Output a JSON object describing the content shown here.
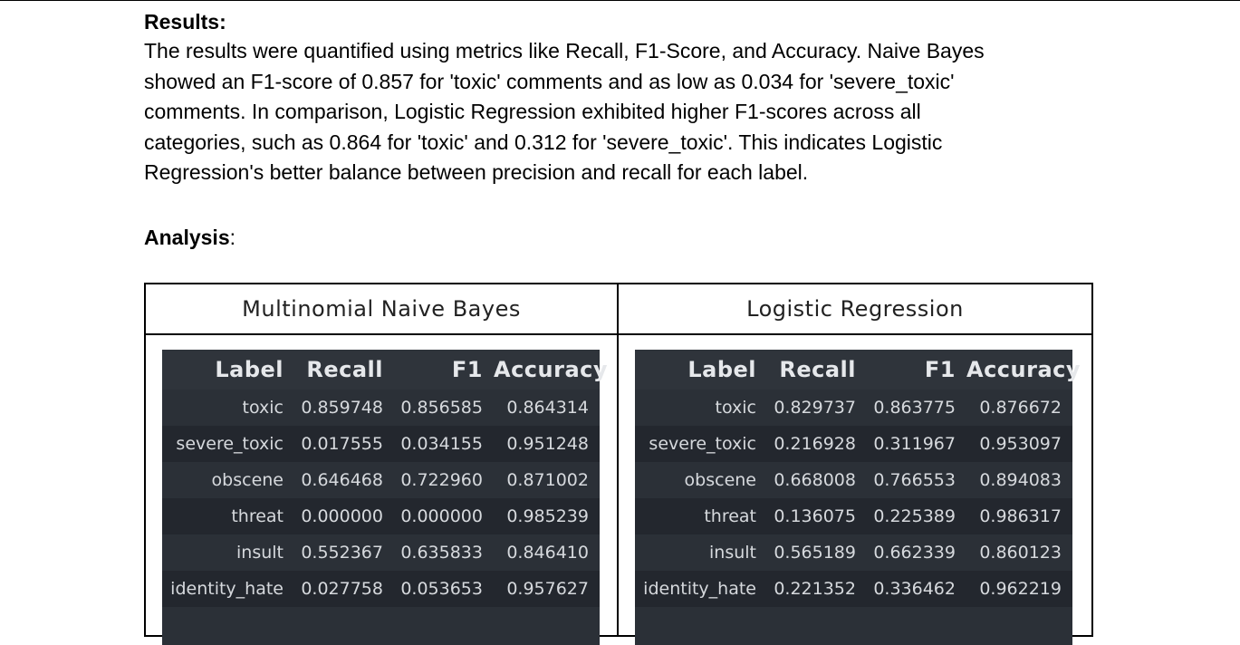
{
  "results": {
    "heading": "Results:",
    "paragraph": [
      "The results were quantified using metrics like Recall, F1-Score, and Accuracy. Naive Bayes",
      "showed an F1-score of 0.857 for 'toxic' comments and as low as 0.034 for 'severe_toxic'",
      "comments. In comparison, Logistic Regression exhibited higher F1-scores across all",
      "categories, such as 0.864 for 'toxic' and 0.312 for 'severe_toxic'. This indicates Logistic",
      "Regression's better balance between precision and recall for each label."
    ]
  },
  "analysis": {
    "heading": "Analysis",
    "suffix": ":"
  },
  "comparison": {
    "left_title": "Multinomial Naive Bayes",
    "right_title": "Logistic Regression",
    "columns": [
      "Label",
      "Recall",
      "F1",
      "Accuracy"
    ],
    "naive_bayes": [
      [
        "toxic",
        "0.859748",
        "0.856585",
        "0.864314"
      ],
      [
        "severe_toxic",
        "0.017555",
        "0.034155",
        "0.951248"
      ],
      [
        "obscene",
        "0.646468",
        "0.722960",
        "0.871002"
      ],
      [
        "threat",
        "0.000000",
        "0.000000",
        "0.985239"
      ],
      [
        "insult",
        "0.552367",
        "0.635833",
        "0.846410"
      ],
      [
        "identity_hate",
        "0.027758",
        "0.053653",
        "0.957627"
      ]
    ],
    "logistic_regression": [
      [
        "toxic",
        "0.829737",
        "0.863775",
        "0.876672"
      ],
      [
        "severe_toxic",
        "0.216928",
        "0.311967",
        "0.953097"
      ],
      [
        "obscene",
        "0.668008",
        "0.766553",
        "0.894083"
      ],
      [
        "threat",
        "0.136075",
        "0.225389",
        "0.986317"
      ],
      [
        "insult",
        "0.565189",
        "0.662339",
        "0.860123"
      ],
      [
        "identity_hate",
        "0.221352",
        "0.336462",
        "0.962219"
      ]
    ]
  }
}
